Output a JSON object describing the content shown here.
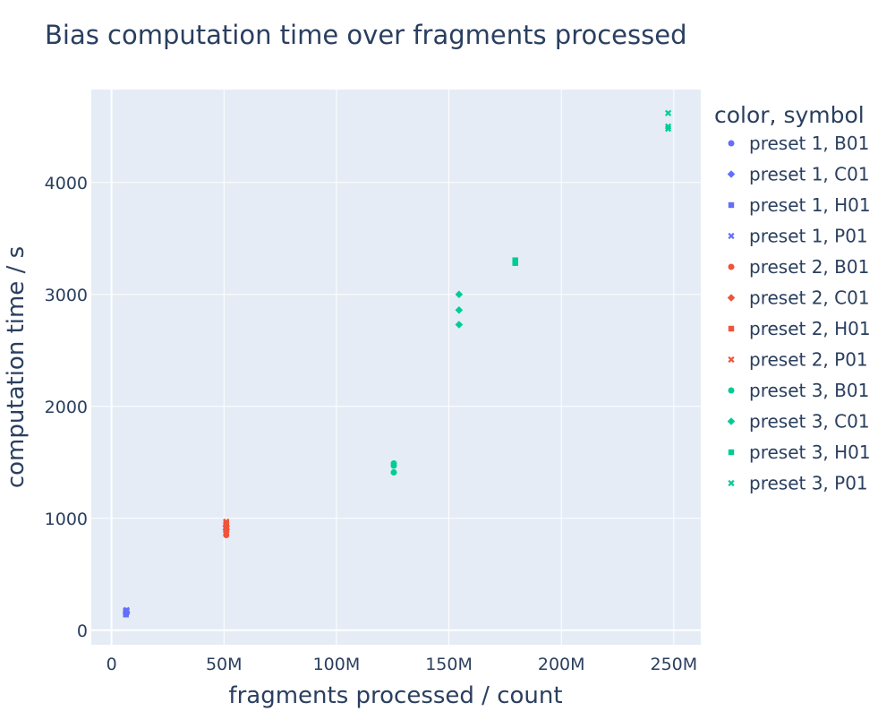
{
  "chart_data": {
    "type": "scatter",
    "title": "Bias computation time over fragments processed",
    "xlabel": "fragments processed / count",
    "ylabel": "computation time / s",
    "xlim": [
      -9000000,
      262000000
    ],
    "ylim": [
      -130,
      4830
    ],
    "x_ticks": [
      0,
      50000000,
      100000000,
      150000000,
      200000000,
      250000000
    ],
    "x_tick_labels": [
      "0",
      "50M",
      "100M",
      "150M",
      "200M",
      "250M"
    ],
    "y_ticks": [
      0,
      1000,
      2000,
      3000,
      4000
    ],
    "y_tick_labels": [
      "0",
      "1000",
      "2000",
      "3000",
      "4000"
    ],
    "grid": true,
    "legend_title": "color, symbol",
    "legend_position": "right",
    "colors": {
      "preset 1": "#636efa",
      "preset 2": "#ef553b",
      "preset 3": "#00cc96",
      "plot_bg": "#e5ecf6",
      "grid": "#ffffff"
    },
    "series": [
      {
        "name": "preset 1, B01",
        "color": "#636efa",
        "symbol": "circle",
        "x": [
          6500000,
          6500000
        ],
        "y": [
          145,
          160
        ]
      },
      {
        "name": "preset 1, C01",
        "color": "#636efa",
        "symbol": "diamond",
        "x": [
          6600000,
          6600000
        ],
        "y": [
          150,
          165
        ]
      },
      {
        "name": "preset 1, H01",
        "color": "#636efa",
        "symbol": "square",
        "x": [
          6400000,
          6400000
        ],
        "y": [
          140,
          175
        ]
      },
      {
        "name": "preset 1, P01",
        "color": "#636efa",
        "symbol": "x",
        "x": [
          6700000,
          6700000
        ],
        "y": [
          170,
          180
        ]
      },
      {
        "name": "preset 2, B01",
        "color": "#ef553b",
        "symbol": "circle",
        "x": [
          51000000,
          51000000
        ],
        "y": [
          850,
          880
        ]
      },
      {
        "name": "preset 2, C01",
        "color": "#ef553b",
        "symbol": "diamond",
        "x": [
          51000000,
          51000000
        ],
        "y": [
          900,
          930
        ]
      },
      {
        "name": "preset 2, H01",
        "color": "#ef553b",
        "symbol": "square",
        "x": [
          51000000,
          51000000
        ],
        "y": [
          920,
          960
        ]
      },
      {
        "name": "preset 2, P01",
        "color": "#ef553b",
        "symbol": "x",
        "x": [
          51000000,
          51000000
        ],
        "y": [
          940,
          970
        ]
      },
      {
        "name": "preset 3, B01",
        "color": "#00cc96",
        "symbol": "circle",
        "x": [
          125500000,
          125500000,
          125500000
        ],
        "y": [
          1410,
          1470,
          1490
        ]
      },
      {
        "name": "preset 3, C01",
        "color": "#00cc96",
        "symbol": "diamond",
        "x": [
          154500000,
          154500000,
          154500000
        ],
        "y": [
          2730,
          2860,
          3000
        ]
      },
      {
        "name": "preset 3, H01",
        "color": "#00cc96",
        "symbol": "square",
        "x": [
          179500000,
          179500000,
          179500000
        ],
        "y": [
          3280,
          3295,
          3305
        ]
      },
      {
        "name": "preset 3, P01",
        "color": "#00cc96",
        "symbol": "x",
        "x": [
          247500000,
          247500000,
          247500000
        ],
        "y": [
          4480,
          4500,
          4620
        ]
      }
    ]
  }
}
